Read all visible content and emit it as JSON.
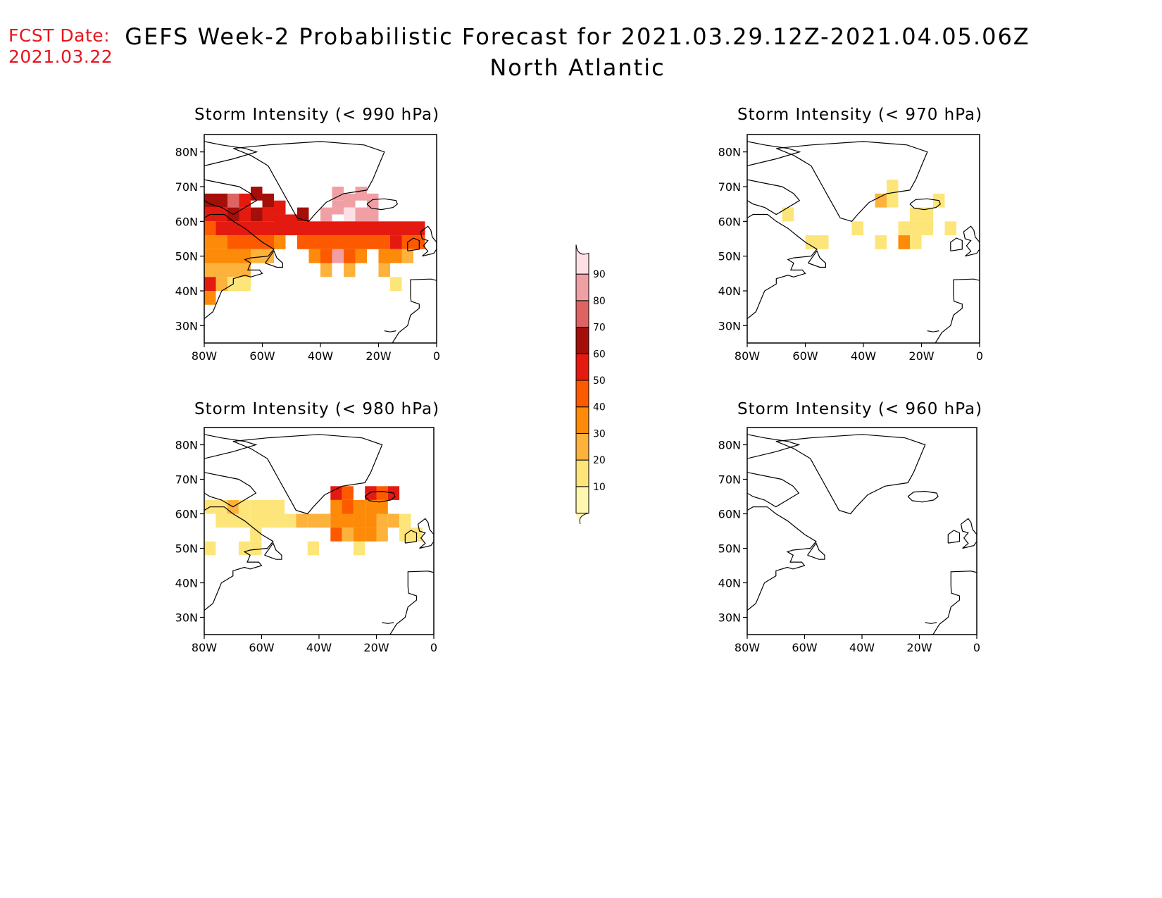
{
  "header": {
    "fcst_label": "FCST Date:",
    "fcst_date": "2021.03.22",
    "title": "GEFS Week-2 Probabilistic Forecast for 2021.03.29.12Z-2021.04.05.06Z",
    "region": "North Atlantic"
  },
  "axes": {
    "lat_labels": [
      "80N",
      "70N",
      "60N",
      "50N",
      "40N",
      "30N"
    ],
    "lon_labels": [
      "80W",
      "60W",
      "40W",
      "20W",
      "0"
    ],
    "lat_range": [
      25,
      85
    ],
    "lon_range": [
      -80,
      0
    ]
  },
  "panels": [
    {
      "id": "p990",
      "title": "Storm Intensity (< 990 hPa)"
    },
    {
      "id": "p970",
      "title": "Storm Intensity (< 970 hPa)"
    },
    {
      "id": "p980",
      "title": "Storm Intensity (< 980 hPa)"
    },
    {
      "id": "p960",
      "title": "Storm Intensity (< 960 hPa)"
    }
  ],
  "colorbar": {
    "levels": [
      "10",
      "20",
      "30",
      "40",
      "50",
      "60",
      "70",
      "80",
      "90"
    ],
    "colors": [
      "#fff7b0",
      "#fde57a",
      "#fdb23c",
      "#fd8a08",
      "#fd5a00",
      "#e41a10",
      "#a50f0a",
      "#de6464",
      "#f0a0a5",
      "#fde0e5"
    ]
  },
  "chart_data": {
    "type": "heatmap",
    "value_units": "percent probability",
    "panels": [
      {
        "title": "Storm Intensity (< 990 hPa)",
        "grid_cells": [
          {
            "lon": -78,
            "lat": 66,
            "v": 6
          },
          {
            "lon": -74,
            "lat": 66,
            "v": 6
          },
          {
            "lon": -70,
            "lat": 66,
            "v": 7
          },
          {
            "lon": -66,
            "lat": 66,
            "v": 5
          },
          {
            "lon": -62,
            "lat": 68,
            "v": 6
          },
          {
            "lon": -58,
            "lat": 66,
            "v": 6
          },
          {
            "lon": -54,
            "lat": 64,
            "v": 5
          },
          {
            "lon": -46,
            "lat": 62,
            "v": 6
          },
          {
            "lon": -34,
            "lat": 68,
            "v": 8
          },
          {
            "lon": -30,
            "lat": 66,
            "v": 8
          },
          {
            "lon": -26,
            "lat": 68,
            "v": 8
          },
          {
            "lon": -22,
            "lat": 66,
            "v": 8
          },
          {
            "lon": -34,
            "lat": 64,
            "v": 8
          },
          {
            "lon": -30,
            "lat": 62,
            "v": 9
          },
          {
            "lon": -26,
            "lat": 62,
            "v": 8
          },
          {
            "lon": -22,
            "lat": 62,
            "v": 8
          },
          {
            "lon": -38,
            "lat": 62,
            "v": 8
          },
          {
            "lon": -78,
            "lat": 62,
            "v": 5
          },
          {
            "lon": -74,
            "lat": 62,
            "v": 5
          },
          {
            "lon": -70,
            "lat": 62,
            "v": 6
          },
          {
            "lon": -66,
            "lat": 62,
            "v": 5
          },
          {
            "lon": -62,
            "lat": 62,
            "v": 6
          },
          {
            "lon": -58,
            "lat": 62,
            "v": 5
          },
          {
            "lon": -54,
            "lat": 60,
            "v": 5
          },
          {
            "lon": -50,
            "lat": 60,
            "v": 5
          },
          {
            "lon": -78,
            "lat": 58,
            "v": 4
          },
          {
            "lon": -74,
            "lat": 58,
            "v": 5
          },
          {
            "lon": -70,
            "lat": 58,
            "v": 5
          },
          {
            "lon": -66,
            "lat": 58,
            "v": 5
          },
          {
            "lon": -62,
            "lat": 58,
            "v": 5
          },
          {
            "lon": -58,
            "lat": 58,
            "v": 5
          },
          {
            "lon": -54,
            "lat": 58,
            "v": 5
          },
          {
            "lon": -50,
            "lat": 58,
            "v": 5
          },
          {
            "lon": -46,
            "lat": 58,
            "v": 5
          },
          {
            "lon": -42,
            "lat": 58,
            "v": 5
          },
          {
            "lon": -38,
            "lat": 58,
            "v": 5
          },
          {
            "lon": -34,
            "lat": 58,
            "v": 5
          },
          {
            "lon": -30,
            "lat": 58,
            "v": 5
          },
          {
            "lon": -26,
            "lat": 58,
            "v": 5
          },
          {
            "lon": -22,
            "lat": 58,
            "v": 5
          },
          {
            "lon": -18,
            "lat": 58,
            "v": 5
          },
          {
            "lon": -14,
            "lat": 58,
            "v": 5
          },
          {
            "lon": -10,
            "lat": 58,
            "v": 5
          },
          {
            "lon": -6,
            "lat": 58,
            "v": 5
          },
          {
            "lon": -78,
            "lat": 54,
            "v": 3
          },
          {
            "lon": -74,
            "lat": 54,
            "v": 3
          },
          {
            "lon": -70,
            "lat": 54,
            "v": 4
          },
          {
            "lon": -66,
            "lat": 54,
            "v": 4
          },
          {
            "lon": -62,
            "lat": 54,
            "v": 4
          },
          {
            "lon": -58,
            "lat": 54,
            "v": 4
          },
          {
            "lon": -54,
            "lat": 54,
            "v": 3
          },
          {
            "lon": -46,
            "lat": 54,
            "v": 4
          },
          {
            "lon": -42,
            "lat": 54,
            "v": 4
          },
          {
            "lon": -38,
            "lat": 54,
            "v": 4
          },
          {
            "lon": -34,
            "lat": 54,
            "v": 4
          },
          {
            "lon": -30,
            "lat": 54,
            "v": 4
          },
          {
            "lon": -26,
            "lat": 54,
            "v": 4
          },
          {
            "lon": -22,
            "lat": 54,
            "v": 4
          },
          {
            "lon": -18,
            "lat": 54,
            "v": 4
          },
          {
            "lon": -14,
            "lat": 54,
            "v": 5
          },
          {
            "lon": -10,
            "lat": 54,
            "v": 4
          },
          {
            "lon": -6,
            "lat": 54,
            "v": 4
          },
          {
            "lon": -78,
            "lat": 50,
            "v": 3
          },
          {
            "lon": -74,
            "lat": 50,
            "v": 3
          },
          {
            "lon": -70,
            "lat": 50,
            "v": 3
          },
          {
            "lon": -66,
            "lat": 50,
            "v": 3
          },
          {
            "lon": -62,
            "lat": 50,
            "v": 2
          },
          {
            "lon": -58,
            "lat": 50,
            "v": 2
          },
          {
            "lon": -42,
            "lat": 50,
            "v": 3
          },
          {
            "lon": -38,
            "lat": 50,
            "v": 4
          },
          {
            "lon": -34,
            "lat": 50,
            "v": 8
          },
          {
            "lon": -30,
            "lat": 50,
            "v": 4
          },
          {
            "lon": -26,
            "lat": 50,
            "v": 3
          },
          {
            "lon": -18,
            "lat": 50,
            "v": 3
          },
          {
            "lon": -14,
            "lat": 50,
            "v": 3
          },
          {
            "lon": -10,
            "lat": 50,
            "v": 2
          },
          {
            "lon": -78,
            "lat": 46,
            "v": 2
          },
          {
            "lon": -74,
            "lat": 46,
            "v": 2
          },
          {
            "lon": -70,
            "lat": 46,
            "v": 2
          },
          {
            "lon": -66,
            "lat": 46,
            "v": 2
          },
          {
            "lon": -38,
            "lat": 46,
            "v": 2
          },
          {
            "lon": -30,
            "lat": 46,
            "v": 2
          },
          {
            "lon": -18,
            "lat": 46,
            "v": 2
          },
          {
            "lon": -78,
            "lat": 42,
            "v": 5
          },
          {
            "lon": -74,
            "lat": 42,
            "v": 2
          },
          {
            "lon": -70,
            "lat": 42,
            "v": 1
          },
          {
            "lon": -66,
            "lat": 42,
            "v": 1
          },
          {
            "lon": -78,
            "lat": 38,
            "v": 3
          },
          {
            "lon": -14,
            "lat": 42,
            "v": 1
          }
        ]
      },
      {
        "title": "Storm Intensity (< 970 hPa)",
        "grid_cells": [
          {
            "lon": -66,
            "lat": 62,
            "v": 1
          },
          {
            "lon": -58,
            "lat": 54,
            "v": 1
          },
          {
            "lon": -54,
            "lat": 54,
            "v": 1
          },
          {
            "lon": -42,
            "lat": 58,
            "v": 1
          },
          {
            "lon": -30,
            "lat": 70,
            "v": 1
          },
          {
            "lon": -34,
            "lat": 66,
            "v": 2
          },
          {
            "lon": -30,
            "lat": 66,
            "v": 1
          },
          {
            "lon": -22,
            "lat": 62,
            "v": 1
          },
          {
            "lon": -18,
            "lat": 62,
            "v": 1
          },
          {
            "lon": -14,
            "lat": 66,
            "v": 1
          },
          {
            "lon": -26,
            "lat": 58,
            "v": 1
          },
          {
            "lon": -22,
            "lat": 58,
            "v": 1
          },
          {
            "lon": -18,
            "lat": 58,
            "v": 1
          },
          {
            "lon": -26,
            "lat": 54,
            "v": 3
          },
          {
            "lon": -22,
            "lat": 54,
            "v": 1
          },
          {
            "lon": -34,
            "lat": 54,
            "v": 1
          },
          {
            "lon": -10,
            "lat": 58,
            "v": 1
          }
        ]
      },
      {
        "title": "Storm Intensity (< 980 hPa)",
        "grid_cells": [
          {
            "lon": -78,
            "lat": 62,
            "v": 1
          },
          {
            "lon": -74,
            "lat": 62,
            "v": 1
          },
          {
            "lon": -70,
            "lat": 62,
            "v": 2
          },
          {
            "lon": -66,
            "lat": 62,
            "v": 1
          },
          {
            "lon": -62,
            "lat": 62,
            "v": 1
          },
          {
            "lon": -58,
            "lat": 62,
            "v": 1
          },
          {
            "lon": -54,
            "lat": 62,
            "v": 1
          },
          {
            "lon": -74,
            "lat": 58,
            "v": 1
          },
          {
            "lon": -70,
            "lat": 58,
            "v": 1
          },
          {
            "lon": -66,
            "lat": 58,
            "v": 1
          },
          {
            "lon": -62,
            "lat": 58,
            "v": 1
          },
          {
            "lon": -58,
            "lat": 58,
            "v": 1
          },
          {
            "lon": -54,
            "lat": 58,
            "v": 1
          },
          {
            "lon": -50,
            "lat": 58,
            "v": 1
          },
          {
            "lon": -46,
            "lat": 58,
            "v": 2
          },
          {
            "lon": -42,
            "lat": 58,
            "v": 2
          },
          {
            "lon": -38,
            "lat": 58,
            "v": 2
          },
          {
            "lon": -34,
            "lat": 62,
            "v": 3
          },
          {
            "lon": -30,
            "lat": 62,
            "v": 4
          },
          {
            "lon": -26,
            "lat": 62,
            "v": 3
          },
          {
            "lon": -22,
            "lat": 62,
            "v": 3
          },
          {
            "lon": -18,
            "lat": 62,
            "v": 3
          },
          {
            "lon": -34,
            "lat": 66,
            "v": 5
          },
          {
            "lon": -30,
            "lat": 66,
            "v": 4
          },
          {
            "lon": -22,
            "lat": 66,
            "v": 5
          },
          {
            "lon": -18,
            "lat": 66,
            "v": 4
          },
          {
            "lon": -14,
            "lat": 66,
            "v": 5
          },
          {
            "lon": -34,
            "lat": 58,
            "v": 3
          },
          {
            "lon": -30,
            "lat": 58,
            "v": 3
          },
          {
            "lon": -26,
            "lat": 58,
            "v": 3
          },
          {
            "lon": -22,
            "lat": 58,
            "v": 3
          },
          {
            "lon": -18,
            "lat": 58,
            "v": 2
          },
          {
            "lon": -14,
            "lat": 58,
            "v": 2
          },
          {
            "lon": -10,
            "lat": 58,
            "v": 1
          },
          {
            "lon": -34,
            "lat": 54,
            "v": 4
          },
          {
            "lon": -30,
            "lat": 54,
            "v": 2
          },
          {
            "lon": -26,
            "lat": 54,
            "v": 3
          },
          {
            "lon": -22,
            "lat": 54,
            "v": 3
          },
          {
            "lon": -18,
            "lat": 54,
            "v": 2
          },
          {
            "lon": -10,
            "lat": 54,
            "v": 1
          },
          {
            "lon": -6,
            "lat": 54,
            "v": 1
          },
          {
            "lon": -62,
            "lat": 54,
            "v": 1
          },
          {
            "lon": -66,
            "lat": 50,
            "v": 1
          },
          {
            "lon": -42,
            "lat": 50,
            "v": 1
          },
          {
            "lon": -26,
            "lat": 50,
            "v": 1
          },
          {
            "lon": -78,
            "lat": 50,
            "v": 1
          },
          {
            "lon": -62,
            "lat": 50,
            "v": 1
          }
        ]
      },
      {
        "title": "Storm Intensity (< 960 hPa)",
        "grid_cells": []
      }
    ]
  }
}
